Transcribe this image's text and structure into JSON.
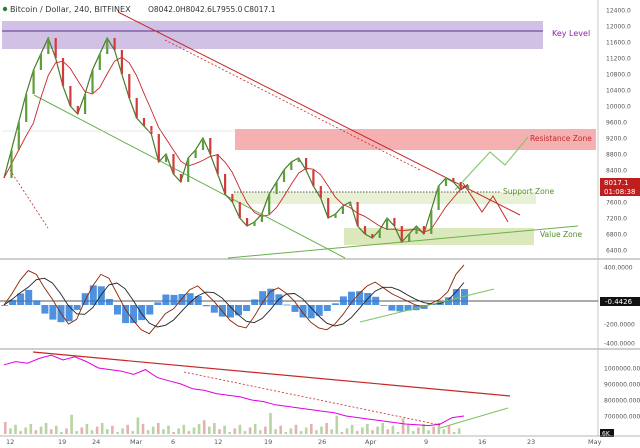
{
  "header": {
    "symbol": "Bitcoin / Dollar, 240, BITFINEX",
    "ohlc": [
      "O8042.0",
      "H8042.6",
      "L7955.0",
      "C8017.1"
    ]
  },
  "colors": {
    "key_level_zone": "#c9b6df",
    "resistance_zone": "#f4a8a8",
    "support_value_zone": "#d6e6b4",
    "price_line": "#bf1e1e",
    "macd_hist": "#2f7ed8",
    "magenta_line": "#e000e0",
    "trend_green": "#6ab04c",
    "trend_red": "#c62828"
  },
  "chart_data": [
    {
      "type": "line",
      "title": "Bitcoin / Dollar, 240, BITFINEX",
      "panel": "price",
      "y_axis_ticks": [
        "12400.0",
        "12000.0",
        "11600.0",
        "11200.0",
        "10800.0",
        "10400.0",
        "10000.0",
        "9600.0",
        "9200.0",
        "8800.0",
        "8400.0",
        "8000.0",
        "7600.0",
        "7200.0",
        "6800.0",
        "6400.0"
      ],
      "ylim": [
        6200,
        12500
      ],
      "x_axis_ticks": [
        "12",
        "19",
        "24",
        "Mar",
        "6",
        "12",
        "19",
        "26",
        "Apr",
        "9",
        "16",
        "23",
        "May"
      ],
      "annotations": [
        "Key Level",
        "Resistance Zone",
        "Support Zone",
        "Value Zone"
      ],
      "price_badges": [
        "8017.1",
        "01:08:38"
      ],
      "zones": [
        {
          "name": "Key Level",
          "from": 11250,
          "to": 11950
        },
        {
          "name": "Resistance Zone",
          "from": 8600,
          "to": 9300
        },
        {
          "name": "Support Zone",
          "from": 7450,
          "to": 7800
        },
        {
          "name": "Value Zone",
          "from": 6500,
          "to": 6850
        }
      ],
      "series": [
        {
          "values": [
            8200,
            8900,
            9600,
            10300,
            10900,
            11300,
            11700,
            11200,
            10500,
            10000,
            9800,
            10300,
            10900,
            11300,
            11700,
            11400,
            10800,
            10200,
            9700,
            9500,
            9300,
            8600,
            8800,
            8300,
            8100,
            8700,
            8900,
            9200,
            8800,
            8300,
            7800,
            7600,
            7200,
            7000,
            7100,
            7300,
            7800,
            8100,
            8400,
            8600,
            8700,
            8400,
            8000,
            7700,
            7200,
            7300,
            7500,
            7600,
            7000,
            6800,
            6700,
            6900,
            7200,
            7000,
            6600,
            6800,
            7000,
            6800,
            7400,
            8000,
            8200,
            8100,
            7900,
            8017
          ]
        }
      ]
    },
    {
      "type": "line",
      "panel": "macd",
      "y_axis_ticks": [
        "400.0000",
        "-0.4426",
        "-200.0000",
        "-400.0000"
      ],
      "ylim": [
        -450,
        450
      ],
      "series": [
        {
          "values": [
            0,
            120,
            260,
            360,
            320,
            180,
            60,
            -80,
            -200,
            -150,
            40,
            200,
            320,
            280,
            120,
            -40,
            -160,
            -260,
            -300,
            -200,
            -90,
            -40,
            60,
            160,
            200,
            120,
            40,
            -60,
            -160,
            -220,
            -240,
            -120,
            20,
            140,
            180,
            120,
            40,
            -80,
            -180,
            -240,
            -260,
            -200,
            -100,
            20,
            120,
            200,
            240,
            180,
            120,
            80,
            40,
            0,
            -20,
            20,
            60,
            140,
            320,
            420
          ]
        }
      ]
    },
    {
      "type": "line",
      "panel": "volume_trend",
      "y_axis_ticks": [
        "1000000.0000",
        "900000.0000",
        "800000.0000",
        "700000.0000",
        "6K"
      ],
      "ylim": [
        600000,
        1100000
      ],
      "series": [
        {
          "values": [
            1020000,
            1040000,
            1030000,
            1060000,
            1080000,
            1050000,
            1070000,
            1040000,
            1000000,
            990000,
            980000,
            960000,
            990000,
            940000,
            920000,
            900000,
            870000,
            860000,
            840000,
            830000,
            820000,
            800000,
            790000,
            770000,
            760000,
            750000,
            740000,
            730000,
            720000,
            700000,
            690000,
            680000,
            670000,
            660000,
            650000,
            645000,
            640000,
            650000,
            690000,
            700000
          ]
        }
      ]
    }
  ]
}
